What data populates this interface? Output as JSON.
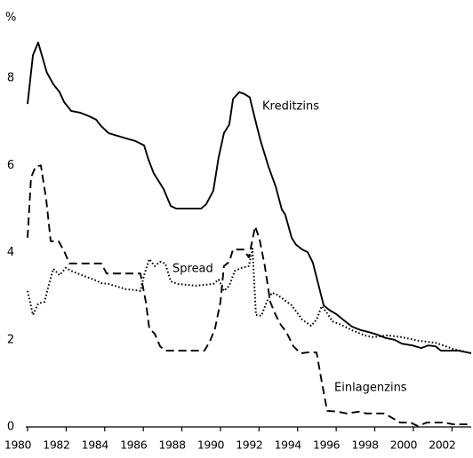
{
  "chart_data": {
    "type": "line",
    "y_unit_label": "%",
    "xlim": [
      1980,
      2003
    ],
    "ylim": [
      0,
      9
    ],
    "xticks": [
      1980,
      1982,
      1984,
      1986,
      1988,
      1990,
      1992,
      1994,
      1996,
      1998,
      2000,
      2002
    ],
    "yticks": [
      0,
      2,
      4,
      6,
      8
    ],
    "grid": false,
    "series": [
      {
        "name": "Kreditzins",
        "color": "#000000",
        "style": "solid",
        "x": [
          1980,
          1980.28,
          1980.55,
          1981.0,
          1981.34,
          1981.66,
          1981.9,
          1982.26,
          1982.72,
          1983.18,
          1983.55,
          1983.82,
          1984.2,
          1984.65,
          1985.1,
          1985.58,
          1986.04,
          1986.27,
          1986.54,
          1987.05,
          1987.42,
          1987.7,
          1988.16,
          1989.0,
          1989.26,
          1989.63,
          1989.9,
          1990.18,
          1990.46,
          1990.65,
          1990.97,
          1991.24,
          1991.52,
          1991.8,
          1992.07,
          1992.49,
          1992.86,
          1993.18,
          1993.36,
          1993.69,
          1993.92,
          1994.24,
          1994.52,
          1994.79,
          1995.07,
          1995.35,
          1995.62,
          1996.0,
          1996.36,
          1996.82,
          1997.28,
          1997.65,
          1998.11,
          1998.57,
          1999.03,
          1999.4,
          1999.95,
          2000.41,
          2000.78,
          2001.15,
          2001.43,
          2001.89,
          2002.35,
          2003.0
        ],
        "values": [
          7.41,
          8.53,
          8.82,
          8.13,
          7.86,
          7.68,
          7.45,
          7.25,
          7.21,
          7.13,
          7.05,
          6.9,
          6.74,
          6.68,
          6.62,
          6.56,
          6.46,
          6.13,
          5.82,
          5.46,
          5.07,
          5.01,
          5.01,
          5.01,
          5.11,
          5.42,
          6.17,
          6.74,
          6.94,
          7.52,
          7.68,
          7.64,
          7.56,
          7.05,
          6.58,
          5.97,
          5.52,
          4.99,
          4.87,
          4.34,
          4.18,
          4.07,
          4.01,
          3.77,
          3.28,
          2.79,
          2.69,
          2.59,
          2.46,
          2.3,
          2.22,
          2.18,
          2.12,
          2.04,
          2.0,
          1.91,
          1.87,
          1.81,
          1.87,
          1.85,
          1.75,
          1.75,
          1.75,
          1.69
        ]
      },
      {
        "name": "Einlagenzins",
        "color": "#000000",
        "style": "dashed",
        "x": [
          1980,
          1980.18,
          1980.41,
          1980.69,
          1980.97,
          1981.2,
          1981.61,
          1981.9,
          1982.17,
          1983.18,
          1983.82,
          1984.1,
          1985.58,
          1985.85,
          1986.13,
          1986.31,
          1986.59,
          1986.87,
          1987.14,
          1989.17,
          1989.45,
          1989.72,
          1990.0,
          1990.18,
          1990.46,
          1990.65,
          1991.2,
          1991.47,
          1991.8,
          1992.03,
          1992.3,
          1992.58,
          1992.86,
          1993.13,
          1993.41,
          1993.78,
          1994.15,
          1994.52,
          1994.98,
          1995.25,
          1995.53,
          1996.08,
          1996.54,
          1997.19,
          1997.56,
          1998.48,
          1998.85,
          1999.31,
          1999.86,
          2000.23,
          2000.69,
          2001.61,
          2002.07,
          2003.0
        ],
        "values": [
          4.34,
          5.72,
          5.97,
          6.0,
          5.21,
          4.26,
          4.26,
          4.03,
          3.75,
          3.75,
          3.75,
          3.52,
          3.52,
          3.52,
          2.87,
          2.26,
          2.14,
          1.85,
          1.75,
          1.75,
          1.96,
          2.26,
          2.87,
          3.69,
          3.79,
          4.07,
          4.07,
          3.89,
          4.6,
          4.3,
          3.69,
          2.87,
          2.57,
          2.34,
          2.18,
          1.85,
          1.69,
          1.71,
          1.71,
          1.04,
          0.37,
          0.35,
          0.31,
          0.35,
          0.31,
          0.31,
          0.22,
          0.1,
          0.1,
          0.02,
          0.1,
          0.1,
          0.06,
          0.06
        ]
      },
      {
        "name": "Spread",
        "color": "#000000",
        "style": "dotted",
        "x": [
          1980,
          1980.28,
          1980.55,
          1980.88,
          1981.11,
          1981.34,
          1981.66,
          1981.98,
          1982.26,
          1982.72,
          1983.18,
          1983.55,
          1983.82,
          1984.2,
          1984.65,
          1985.1,
          1985.58,
          1985.85,
          1986.04,
          1986.31,
          1986.59,
          1986.87,
          1987.14,
          1987.42,
          1987.79,
          1988.71,
          1989.63,
          1989.91,
          1990.18,
          1990.46,
          1990.74,
          1991.11,
          1991.47,
          1991.66,
          1991.84,
          1992.12,
          1992.4,
          1992.67,
          1992.95,
          1993.32,
          1993.69,
          1993.96,
          1994.24,
          1994.7,
          1994.98,
          1995.25,
          1995.53,
          1995.81,
          1996.27,
          1996.82,
          1997.47,
          1997.93,
          1998.66,
          1999.4,
          2000.23,
          2001.15,
          2002.07,
          2003.0
        ],
        "values": [
          3.12,
          2.57,
          2.83,
          2.87,
          3.28,
          3.63,
          3.48,
          3.65,
          3.58,
          3.5,
          3.42,
          3.36,
          3.3,
          3.28,
          3.22,
          3.16,
          3.14,
          3.12,
          3.48,
          3.85,
          3.69,
          3.79,
          3.75,
          3.34,
          3.28,
          3.24,
          3.28,
          3.38,
          3.12,
          3.24,
          3.58,
          3.65,
          3.69,
          4.09,
          2.57,
          2.55,
          2.87,
          3.08,
          3.03,
          2.91,
          2.79,
          2.63,
          2.46,
          2.32,
          2.46,
          2.77,
          2.61,
          2.42,
          2.34,
          2.22,
          2.1,
          2.06,
          2.1,
          2.06,
          1.98,
          1.93,
          1.79,
          1.69
        ]
      }
    ]
  }
}
